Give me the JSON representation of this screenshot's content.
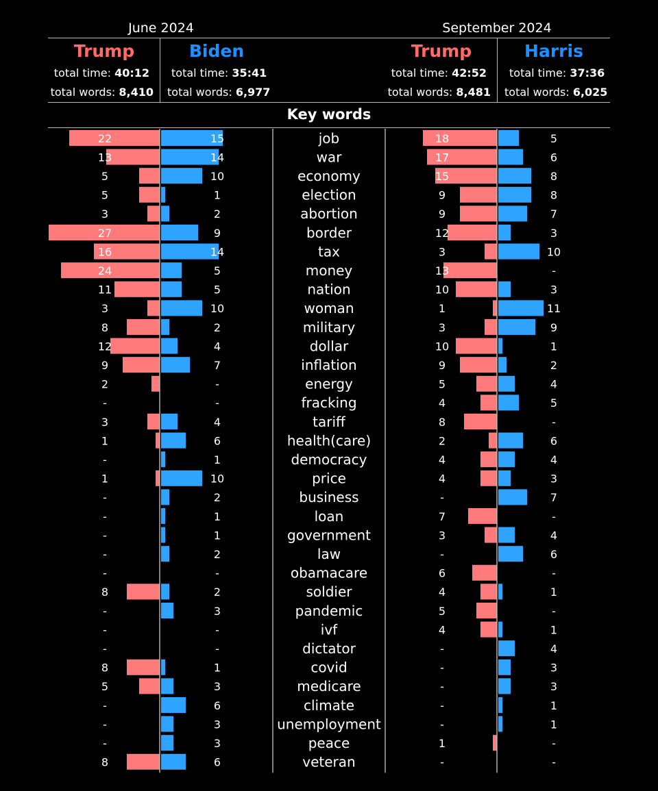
{
  "header": {
    "left_period": "June 2024",
    "right_period": "September 2024",
    "time_label": "total time:",
    "words_label": "total words:",
    "candidates": [
      {
        "name": "Trump",
        "color": "#ff6b6b",
        "total_time": "40:12",
        "total_words": "8,410"
      },
      {
        "name": "Biden",
        "color": "#1e90ff",
        "total_time": "35:41",
        "total_words": "6,977"
      },
      {
        "name": "Trump",
        "color": "#ff6b6b",
        "total_time": "42:52",
        "total_words": "8,481"
      },
      {
        "name": "Harris",
        "color": "#1e90ff",
        "total_time": "37:36",
        "total_words": "6,025"
      }
    ],
    "keywords_title": "Key words"
  },
  "chart_data": {
    "type": "bar",
    "title": "Key words",
    "categories": [
      "job",
      "war",
      "economy",
      "election",
      "abortion",
      "border",
      "tax",
      "money",
      "nation",
      "woman",
      "military",
      "dollar",
      "inflation",
      "energy",
      "fracking",
      "tariff",
      "health(care)",
      "democracy",
      "price",
      "business",
      "loan",
      "government",
      "law",
      "obamacare",
      "soldier",
      "pandemic",
      "ivf",
      "dictator",
      "covid",
      "medicare",
      "climate",
      "unemployment",
      "peace",
      "veteran"
    ],
    "series": [
      {
        "name": "Trump",
        "period": "June 2024",
        "color": "#ff7b7b",
        "values": [
          22,
          13,
          5,
          5,
          3,
          27,
          16,
          24,
          11,
          3,
          8,
          12,
          9,
          2,
          null,
          3,
          1,
          null,
          1,
          null,
          null,
          null,
          null,
          null,
          8,
          null,
          null,
          null,
          8,
          5,
          null,
          null,
          null,
          8
        ]
      },
      {
        "name": "Biden",
        "period": "June 2024",
        "color": "#2ea3ff",
        "values": [
          15,
          14,
          10,
          1,
          2,
          9,
          14,
          5,
          5,
          10,
          2,
          4,
          7,
          null,
          null,
          4,
          6,
          1,
          10,
          2,
          1,
          1,
          2,
          null,
          2,
          3,
          null,
          null,
          1,
          3,
          6,
          3,
          3,
          6
        ]
      },
      {
        "name": "Trump",
        "period": "September 2024",
        "color": "#ff7b7b",
        "values": [
          18,
          17,
          15,
          9,
          9,
          12,
          3,
          13,
          10,
          1,
          3,
          10,
          9,
          5,
          4,
          8,
          2,
          4,
          4,
          null,
          7,
          3,
          null,
          6,
          4,
          5,
          4,
          null,
          null,
          null,
          null,
          null,
          1,
          null
        ]
      },
      {
        "name": "Harris",
        "period": "September 2024",
        "color": "#2ea3ff",
        "values": [
          5,
          6,
          8,
          8,
          7,
          3,
          10,
          null,
          3,
          11,
          9,
          1,
          2,
          4,
          5,
          null,
          6,
          4,
          3,
          7,
          null,
          4,
          6,
          null,
          1,
          null,
          1,
          4,
          3,
          3,
          1,
          1,
          null,
          null
        ]
      }
    ],
    "missing_label": "-"
  }
}
